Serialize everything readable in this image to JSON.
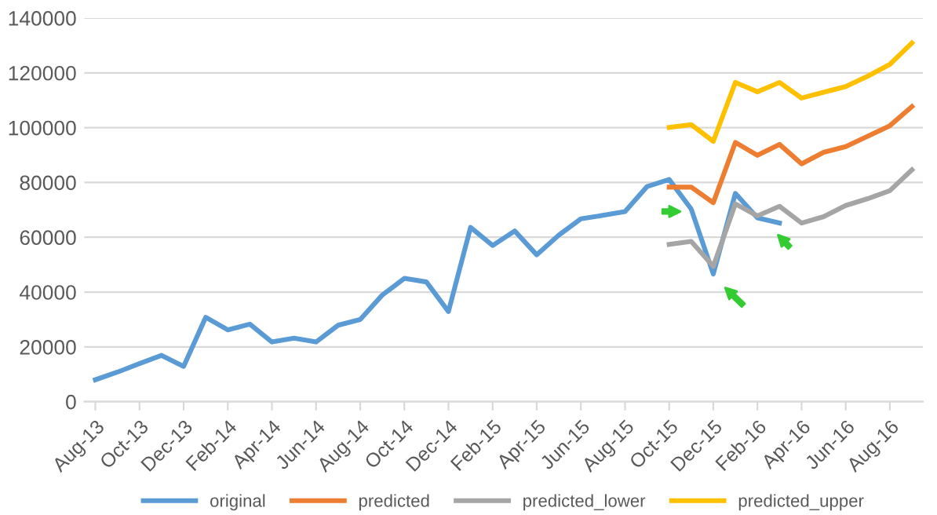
{
  "chart_data": {
    "type": "line",
    "categories": [
      "Aug-13",
      null,
      "Oct-13",
      null,
      "Dec-13",
      null,
      "Feb-14",
      null,
      "Apr-14",
      null,
      "Jun-14",
      null,
      "Aug-14",
      null,
      "Oct-14",
      null,
      "Dec-14",
      null,
      "Feb-15",
      null,
      "Apr-15",
      null,
      "Jun-15",
      null,
      "Aug-15",
      null,
      "Oct-15",
      null,
      "Dec-15",
      null,
      "Feb-16",
      null,
      "Apr-16",
      null,
      "Jun-16",
      null,
      "Aug-16",
      null
    ],
    "series": [
      {
        "name": "original",
        "color": "#5b9bd5",
        "values": [
          8000,
          10800,
          13900,
          16900,
          12900,
          30800,
          26200,
          28300,
          21800,
          23200,
          21800,
          27900,
          30000,
          38900,
          45000,
          43700,
          32900,
          63600,
          57000,
          62300,
          53600,
          60800,
          66700,
          68000,
          69400,
          78500,
          81100,
          70300,
          46600,
          76000,
          67100,
          65200,
          null,
          null,
          null,
          null,
          null,
          null
        ]
      },
      {
        "name": "predicted",
        "color": "#ed7d31",
        "values": [
          null,
          null,
          null,
          null,
          null,
          null,
          null,
          null,
          null,
          null,
          null,
          null,
          null,
          null,
          null,
          null,
          null,
          null,
          null,
          null,
          null,
          null,
          null,
          null,
          null,
          null,
          78300,
          78300,
          72600,
          94600,
          89900,
          93900,
          86800,
          91000,
          93100,
          96900,
          100700,
          107700
        ]
      },
      {
        "name": "predicted_lower",
        "color": "#a5a5a5",
        "values": [
          null,
          null,
          null,
          null,
          null,
          null,
          null,
          null,
          null,
          null,
          null,
          null,
          null,
          null,
          null,
          null,
          null,
          null,
          null,
          null,
          null,
          null,
          null,
          null,
          null,
          null,
          57400,
          58500,
          49400,
          72200,
          67800,
          71300,
          65200,
          67500,
          71600,
          74100,
          77000,
          84600
        ]
      },
      {
        "name": "predicted_upper",
        "color": "#ffc000",
        "values": [
          null,
          null,
          null,
          null,
          null,
          null,
          null,
          null,
          null,
          null,
          null,
          null,
          null,
          null,
          null,
          null,
          null,
          null,
          null,
          null,
          null,
          null,
          null,
          null,
          null,
          null,
          100100,
          101100,
          95000,
          116500,
          113100,
          116500,
          110800,
          112900,
          115000,
          118800,
          123100,
          130900
        ]
      }
    ],
    "ylim": [
      0,
      140000
    ],
    "yticks": [
      0,
      20000,
      40000,
      60000,
      80000,
      100000,
      120000,
      140000
    ],
    "grid": "y",
    "legend": "bottom",
    "marker": "none",
    "line_style": "solid"
  }
}
